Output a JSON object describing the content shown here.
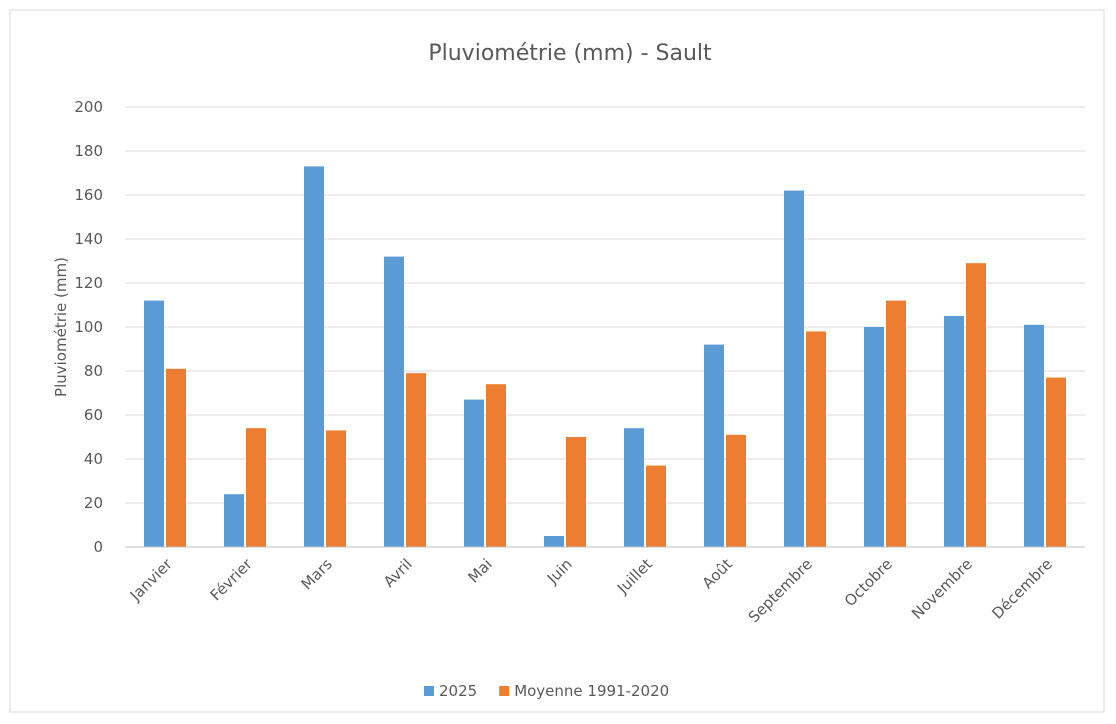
{
  "chart_data": {
    "type": "bar",
    "title": "Pluviométrie (mm) - Sault",
    "y_label": "Pluviométrie (mm)",
    "categories": [
      "Janvier",
      "Février",
      "Mars",
      "Avril",
      "Mai",
      "Juin",
      "Juillet",
      "Août",
      "Septembre",
      "Octobre",
      "Novembre",
      "Décembre"
    ],
    "series": [
      {
        "name": "2025",
        "color": "#5b9bd5",
        "values": [
          112,
          24,
          173,
          132,
          67,
          5,
          54,
          92,
          162,
          100,
          105,
          101
        ]
      },
      {
        "name": "Moyenne 1991-2020",
        "color": "#ed7d31",
        "values": [
          81,
          54,
          53,
          79,
          74,
          50,
          37,
          51,
          98,
          112,
          129,
          77
        ]
      }
    ],
    "ylim": [
      0,
      200
    ],
    "yticks": [
      0,
      20,
      40,
      60,
      80,
      100,
      120,
      140,
      160,
      180,
      200
    ],
    "grid": true,
    "legend": "bottom"
  }
}
